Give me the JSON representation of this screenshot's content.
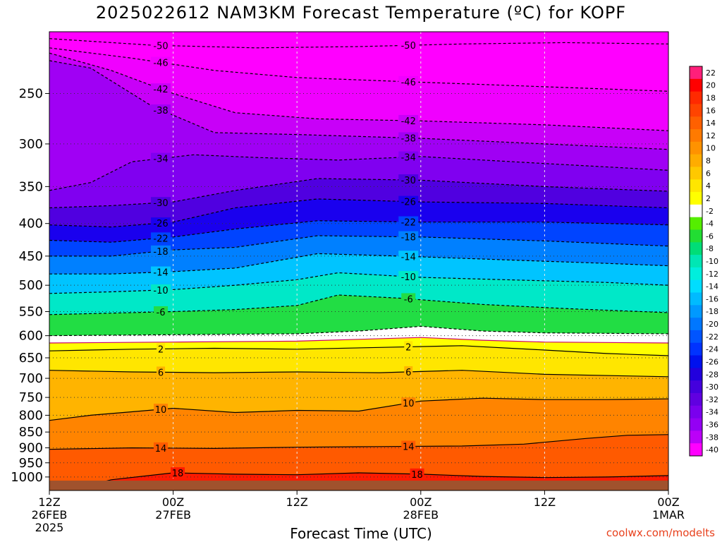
{
  "chart_data": {
    "type": "heatmap",
    "title": "2025022612 NAM3KM Forecast Temperature (ºC) for KOPF",
    "xlabel": "Forecast Time (UTC)",
    "credit": "coolwx.com/modelts",
    "y_axis": {
      "scale": "log",
      "reversed": true,
      "range": [
        200,
        1050
      ],
      "ticks": [
        250,
        300,
        350,
        400,
        450,
        500,
        550,
        600,
        650,
        700,
        750,
        800,
        850,
        900,
        950,
        1000
      ]
    },
    "x_axis": {
      "range_hours": [
        0,
        60
      ],
      "ticks": [
        {
          "hour": 0,
          "line1": "12Z",
          "line2": "26FEB",
          "line3": "2025"
        },
        {
          "hour": 12,
          "line1": "00Z",
          "line2": "27FEB",
          "line3": ""
        },
        {
          "hour": 24,
          "line1": "12Z",
          "line2": "",
          "line3": ""
        },
        {
          "hour": 36,
          "line1": "00Z",
          "line2": "28FEB",
          "line3": ""
        },
        {
          "hour": 48,
          "line1": "12Z",
          "line2": "",
          "line3": ""
        },
        {
          "hour": 60,
          "line1": "00Z",
          "line2": "1MAR",
          "line3": ""
        }
      ]
    },
    "colorbar": [
      {
        "label": "22",
        "color": "#ff1f7a"
      },
      {
        "label": "20",
        "color": "#ff0000"
      },
      {
        "label": "18",
        "color": "#ff2a00"
      },
      {
        "label": "16",
        "color": "#ff4400"
      },
      {
        "label": "14",
        "color": "#ff6000"
      },
      {
        "label": "12",
        "color": "#ff7a00"
      },
      {
        "label": "10",
        "color": "#ff9200"
      },
      {
        "label": "8",
        "color": "#ffac00"
      },
      {
        "label": "6",
        "color": "#ffc800"
      },
      {
        "label": "4",
        "color": "#ffe600"
      },
      {
        "label": "2",
        "color": "#ffff00"
      },
      {
        "label": "-2",
        "color": "#ffffff"
      },
      {
        "label": "-4",
        "color": "#55ee00"
      },
      {
        "label": "-6",
        "color": "#22dd33"
      },
      {
        "label": "-8",
        "color": "#00dd77"
      },
      {
        "label": "-10",
        "color": "#00e6b4"
      },
      {
        "label": "-12",
        "color": "#00eedd"
      },
      {
        "label": "-14",
        "color": "#00ddff"
      },
      {
        "label": "-16",
        "color": "#00bbff"
      },
      {
        "label": "-18",
        "color": "#0099ff"
      },
      {
        "label": "-20",
        "color": "#0077ff"
      },
      {
        "label": "-22",
        "color": "#0055ff"
      },
      {
        "label": "-24",
        "color": "#0033ff"
      },
      {
        "label": "-26",
        "color": "#0011ee"
      },
      {
        "label": "-28",
        "color": "#2200dd"
      },
      {
        "label": "-30",
        "color": "#4400dd"
      },
      {
        "label": "-32",
        "color": "#6000e0"
      },
      {
        "label": "-34",
        "color": "#7a00ee"
      },
      {
        "label": "-36",
        "color": "#9400f4"
      },
      {
        "label": "-38",
        "color": "#bb00f8"
      },
      {
        "label": "-40",
        "color": "#ff00ff"
      }
    ],
    "isotherms": [
      {
        "value": -50,
        "label": "-50",
        "kind": "dashed",
        "points": [
          [
            0,
            205
          ],
          [
            10,
            210
          ],
          [
            20,
            212
          ],
          [
            30,
            211
          ],
          [
            40,
            209
          ],
          [
            50,
            208
          ],
          [
            60,
            209
          ]
        ]
      },
      {
        "value": -46,
        "label": "-46",
        "kind": "dashed",
        "points": [
          [
            0,
            212
          ],
          [
            8,
            220
          ],
          [
            16,
            230
          ],
          [
            24,
            236
          ],
          [
            36,
            240
          ],
          [
            48,
            244
          ],
          [
            60,
            248
          ]
        ]
      },
      {
        "value": -42,
        "label": "-42",
        "kind": "dashed",
        "points": [
          [
            0,
            216
          ],
          [
            6,
            230
          ],
          [
            12,
            250
          ],
          [
            18,
            268
          ],
          [
            26,
            274
          ],
          [
            36,
            276
          ],
          [
            48,
            280
          ],
          [
            60,
            286
          ]
        ]
      },
      {
        "value": -38,
        "label": "-38",
        "kind": "dashed",
        "points": [
          [
            0,
            222
          ],
          [
            4,
            228
          ],
          [
            10,
            262
          ],
          [
            16,
            288
          ],
          [
            24,
            290
          ],
          [
            36,
            294
          ],
          [
            48,
            300
          ],
          [
            60,
            306
          ]
        ]
      },
      {
        "value": -34,
        "label": "-34",
        "kind": "dashed",
        "points": [
          [
            0,
            355
          ],
          [
            4,
            345
          ],
          [
            8,
            320
          ],
          [
            14,
            312
          ],
          [
            20,
            315
          ],
          [
            28,
            318
          ],
          [
            36,
            314
          ],
          [
            48,
            322
          ],
          [
            60,
            330
          ]
        ]
      },
      {
        "value": -30,
        "label": "-30",
        "kind": "dashed",
        "points": [
          [
            0,
            378
          ],
          [
            6,
            375
          ],
          [
            12,
            370
          ],
          [
            18,
            355
          ],
          [
            26,
            340
          ],
          [
            36,
            342
          ],
          [
            48,
            350
          ],
          [
            60,
            356
          ]
        ]
      },
      {
        "value": -26,
        "label": "-26",
        "kind": "dashed",
        "points": [
          [
            0,
            402
          ],
          [
            6,
            405
          ],
          [
            12,
            398
          ],
          [
            18,
            378
          ],
          [
            26,
            366
          ],
          [
            36,
            370
          ],
          [
            48,
            372
          ],
          [
            60,
            378
          ]
        ]
      },
      {
        "value": -22,
        "label": "-22",
        "kind": "dashed",
        "points": [
          [
            0,
            425
          ],
          [
            6,
            428
          ],
          [
            12,
            420
          ],
          [
            18,
            408
          ],
          [
            26,
            396
          ],
          [
            36,
            398
          ],
          [
            48,
            398
          ],
          [
            60,
            402
          ]
        ]
      },
      {
        "value": -18,
        "label": "-18",
        "kind": "dashed",
        "points": [
          [
            0,
            450
          ],
          [
            6,
            450
          ],
          [
            12,
            440
          ],
          [
            18,
            436
          ],
          [
            26,
            418
          ],
          [
            36,
            420
          ],
          [
            48,
            426
          ],
          [
            60,
            434
          ]
        ]
      },
      {
        "value": -14,
        "label": "-14",
        "kind": "dashed",
        "points": [
          [
            0,
            480
          ],
          [
            6,
            480
          ],
          [
            12,
            476
          ],
          [
            18,
            470
          ],
          [
            26,
            446
          ],
          [
            34,
            450
          ],
          [
            44,
            456
          ],
          [
            54,
            462
          ],
          [
            60,
            466
          ]
        ]
      },
      {
        "value": -10,
        "label": "-10",
        "kind": "dashed",
        "points": [
          [
            0,
            515
          ],
          [
            6,
            512
          ],
          [
            12,
            508
          ],
          [
            18,
            500
          ],
          [
            24,
            490
          ],
          [
            28,
            478
          ],
          [
            36,
            486
          ],
          [
            44,
            490
          ],
          [
            54,
            495
          ],
          [
            60,
            500
          ]
        ]
      },
      {
        "value": -6,
        "label": "-6",
        "kind": "dashed",
        "points": [
          [
            0,
            556
          ],
          [
            6,
            553
          ],
          [
            12,
            550
          ],
          [
            18,
            546
          ],
          [
            24,
            538
          ],
          [
            28,
            518
          ],
          [
            34,
            524
          ],
          [
            42,
            536
          ],
          [
            50,
            544
          ],
          [
            60,
            552
          ]
        ]
      },
      {
        "value": -2,
        "label": "",
        "kind": "dashed",
        "points": [
          [
            0,
            600
          ],
          [
            12,
            598
          ],
          [
            24,
            596
          ],
          [
            30,
            590
          ],
          [
            36,
            580
          ],
          [
            42,
            590
          ],
          [
            48,
            594
          ],
          [
            60,
            596
          ]
        ]
      },
      {
        "value": 0,
        "label": "",
        "kind": "freezing",
        "points": [
          [
            0,
            616
          ],
          [
            12,
            614
          ],
          [
            24,
            612
          ],
          [
            30,
            608
          ],
          [
            36,
            604
          ],
          [
            42,
            610
          ],
          [
            48,
            614
          ],
          [
            60,
            616
          ]
        ]
      },
      {
        "value": 2,
        "label": "2",
        "kind": "solid",
        "points": [
          [
            0,
            634
          ],
          [
            8,
            630
          ],
          [
            16,
            628
          ],
          [
            24,
            630
          ],
          [
            32,
            626
          ],
          [
            40,
            622
          ],
          [
            48,
            632
          ],
          [
            54,
            640
          ],
          [
            60,
            645
          ]
        ]
      },
      {
        "value": 6,
        "label": "6",
        "kind": "solid",
        "points": [
          [
            0,
            680
          ],
          [
            8,
            684
          ],
          [
            16,
            686
          ],
          [
            24,
            684
          ],
          [
            32,
            686
          ],
          [
            40,
            680
          ],
          [
            48,
            690
          ],
          [
            56,
            694
          ],
          [
            60,
            696
          ]
        ]
      },
      {
        "value": 10,
        "label": "10",
        "kind": "solid",
        "points": [
          [
            0,
            815
          ],
          [
            4,
            800
          ],
          [
            8,
            790
          ],
          [
            12,
            780
          ],
          [
            18,
            792
          ],
          [
            24,
            786
          ],
          [
            30,
            788
          ],
          [
            36,
            760
          ],
          [
            42,
            752
          ],
          [
            48,
            756
          ],
          [
            54,
            756
          ],
          [
            60,
            754
          ]
        ]
      },
      {
        "value": 14,
        "label": "14",
        "kind": "solid",
        "points": [
          [
            0,
            905
          ],
          [
            8,
            900
          ],
          [
            16,
            902
          ],
          [
            24,
            898
          ],
          [
            32,
            896
          ],
          [
            40,
            894
          ],
          [
            46,
            888
          ],
          [
            52,
            870
          ],
          [
            56,
            860
          ],
          [
            60,
            858
          ]
        ]
      },
      {
        "value": 18,
        "label": "18",
        "kind": "solid",
        "points": [
          [
            2,
            1048
          ],
          [
            6,
            1010
          ],
          [
            12,
            985
          ],
          [
            18,
            990
          ],
          [
            24,
            992
          ],
          [
            30,
            985
          ],
          [
            36,
            990
          ],
          [
            42,
            998
          ],
          [
            48,
            1002
          ],
          [
            54,
            1000
          ],
          [
            60,
            995
          ]
        ]
      }
    ]
  }
}
